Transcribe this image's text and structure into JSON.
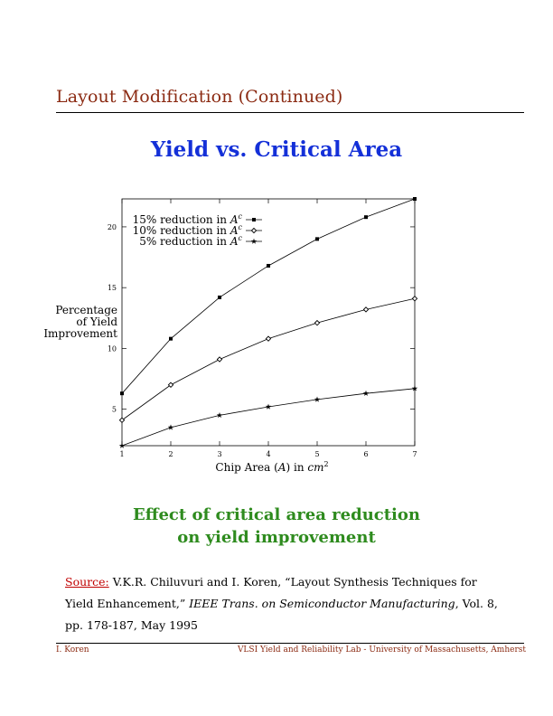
{
  "header": {
    "title": "Layout Modification (Continued)"
  },
  "slide_title": "Yield vs. Critical Area",
  "chart_data": {
    "type": "line",
    "title": "",
    "xlabel_prefix": "Chip Area (",
    "xlabel_var": "A",
    "xlabel_mid": ") in ",
    "xlabel_unit": "cm",
    "xlabel_exp": "2",
    "ylabel_lines": [
      "Percentage",
      "of Yield",
      "Improvement"
    ],
    "xlim": [
      1,
      7
    ],
    "ylim": [
      2,
      22.3
    ],
    "xticks": [
      1,
      2,
      3,
      4,
      5,
      6,
      7
    ],
    "yticks": [
      5,
      10,
      15,
      20
    ],
    "grid": false,
    "legend_position": "top-left",
    "x": [
      1,
      2,
      3,
      4,
      5,
      6,
      7
    ],
    "series": [
      {
        "name": "15% reduction in A",
        "name_prefix": "15% reduction in ",
        "name_var": "A",
        "name_sup": "c",
        "marker": "square",
        "values": [
          6.3,
          10.8,
          14.2,
          16.8,
          19.0,
          20.8,
          22.3
        ]
      },
      {
        "name": "10% reduction in A",
        "name_prefix": "10% reduction in ",
        "name_var": "A",
        "name_sup": "c",
        "marker": "diamond",
        "values": [
          4.1,
          7.0,
          9.1,
          10.8,
          12.1,
          13.2,
          14.1
        ]
      },
      {
        "name": "5% reduction in A",
        "name_prefix": "5% reduction in ",
        "name_var": "A",
        "name_sup": "c",
        "marker": "star",
        "values": [
          2.0,
          3.5,
          4.5,
          5.2,
          5.8,
          6.3,
          6.7
        ]
      }
    ]
  },
  "caption": {
    "line1": "Effect of critical area reduction",
    "line2": "on yield improvement"
  },
  "source": {
    "label": "Source:",
    "text1": " V.K.R. Chiluvuri and I. Koren, “Layout Synthesis Techniques for Yield Enhancement,” ",
    "journal": "IEEE Trans. on Semiconductor Manufacturing",
    "text2": ", Vol. 8, pp. 178-187, May 1995"
  },
  "footer": {
    "left": "I. Koren",
    "right": "VLSI Yield and Reliability Lab - University of Massachusetts, Amherst"
  }
}
